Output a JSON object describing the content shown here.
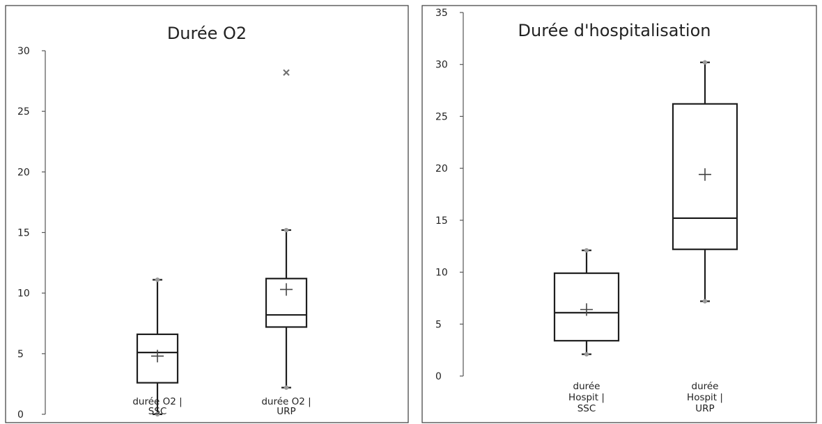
{
  "chart_data": [
    {
      "type": "box",
      "title": "Durée O2",
      "ylim": [
        0,
        30
      ],
      "yticks": [
        "0",
        "5",
        "10",
        "15",
        "20",
        "25",
        "30"
      ],
      "categories": [
        {
          "label_lines": [
            "durée O2 |",
            "SSC"
          ],
          "min": 0,
          "q1": 2.6,
          "median": 5.1,
          "q3": 6.6,
          "max": 11.1,
          "mean": 4.8,
          "outliers": []
        },
        {
          "label_lines": [
            "durée O2 |",
            "URP"
          ],
          "min": 2.2,
          "q1": 7.2,
          "median": 8.2,
          "q3": 11.2,
          "max": 15.2,
          "mean": 10.3,
          "outliers": [
            28.2
          ]
        }
      ],
      "grid": false,
      "legend": "none"
    },
    {
      "type": "box",
      "title": "Durée  d'hospitalisation",
      "ylim": [
        0,
        35
      ],
      "yticks": [
        "0",
        "5",
        "10",
        "15",
        "20",
        "25",
        "30",
        "35"
      ],
      "categories": [
        {
          "label_lines": [
            "durée",
            "Hospit |",
            "SSC"
          ],
          "min": 2.1,
          "q1": 3.4,
          "median": 6.1,
          "q3": 9.9,
          "max": 12.1,
          "mean": 6.4,
          "outliers": []
        },
        {
          "label_lines": [
            "durée",
            "Hospit |",
            "URP"
          ],
          "min": 7.2,
          "q1": 12.2,
          "median": 15.2,
          "q3": 26.2,
          "max": 30.2,
          "mean": 19.4,
          "outliers": []
        }
      ],
      "grid": false,
      "legend": "none"
    }
  ]
}
